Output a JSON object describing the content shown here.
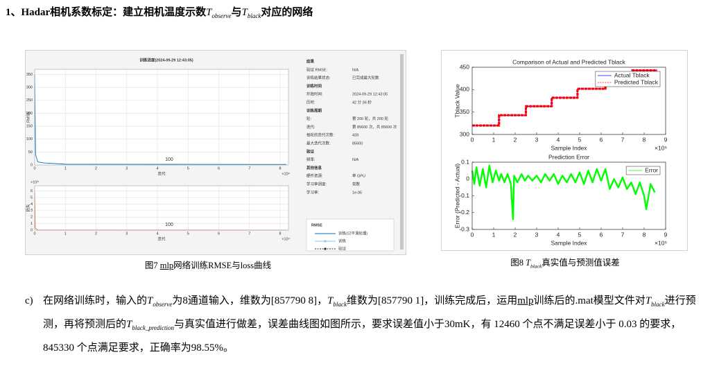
{
  "heading": [
    "1、Hadar相机系数标定：建立相机温度示数",
    {
      "base": "T",
      "sub": "observe"
    },
    "与",
    {
      "base": "T",
      "sub": "black"
    },
    "对应的网络"
  ],
  "figure7": {
    "title": "训练进度(2024-09-29 12:43:05)",
    "caption": [
      "图7 ",
      {
        "underline": "mlp"
      },
      "网络训练RMSE与loss曲线"
    ],
    "panel": [
      {
        "title": "结果",
        "rows": [
          [
            "验证 RMSE:",
            "N/A"
          ],
          [
            "训练结果状态:",
            "已完成最大轮数"
          ]
        ]
      },
      {
        "title": "训练时间",
        "rows": [
          [
            "开始时间:",
            "2024-09-29 12:43:05"
          ],
          [
            "历时:",
            "42 分 36 秒"
          ]
        ]
      },
      {
        "title": "训练周期",
        "rows": [
          [
            "轮:",
            "第 200 轮，共 200 轮"
          ],
          [
            "迭代:",
            "第 85600 次，共 85600 次"
          ],
          [
            "每轮的迭代次数:",
            "428"
          ],
          [
            "最大迭代次数:",
            "85600"
          ]
        ]
      },
      {
        "title": "验证",
        "rows": [
          [
            "频率:",
            "N/A"
          ]
        ]
      },
      {
        "title": "其他信息",
        "rows": [
          [
            "硬件资源:",
            "单 GPU"
          ],
          [
            "学习率调度:",
            "常数"
          ],
          [
            "学习率:",
            "1e-05"
          ]
        ]
      }
    ],
    "legend": {
      "title": "RMSE",
      "entries": [
        "训练(已平滑处理)",
        "训练",
        "验证"
      ]
    }
  },
  "figure8": {
    "caption": [
      "图8 ",
      {
        "base": "T",
        "sub": "black"
      },
      "真实值与预测值误差"
    ]
  },
  "paragraph": {
    "marker": "c)",
    "text": [
      "在网络训练时，输入的",
      {
        "base": "T",
        "sub": "observe"
      },
      "为8通道输入，维数为[857790 8]，",
      {
        "base": "T",
        "sub": "black"
      },
      "维数为[857790 1]，训练完成后，运用",
      {
        "underline": "mlp"
      },
      "训练后的.mat模型文件对",
      {
        "base": "T",
        "sub": "black"
      },
      "进行预测，再将预测后的",
      {
        "base": "T",
        "sub": "black_prediction"
      },
      "与真实值进行做差，误差曲线图如图所示，要求误差值小于30mK，有 12460 个点不满足误差小于 0.03 的要求，845330 个点满足要求，正确率为98.55%。"
    ]
  },
  "chart_data": [
    {
      "type": "line",
      "ylabel": "RMSE",
      "xlabel": "迭代",
      "x_multiplier": "×10⁴",
      "annotation": "100",
      "xlim": [
        0,
        8.27
      ],
      "ylim": [
        0,
        370
      ],
      "xticks": [
        0,
        1,
        2,
        3,
        4,
        5,
        6,
        7,
        8
      ],
      "yticks": [
        0,
        50,
        100,
        150,
        200,
        250,
        300,
        350
      ],
      "grid": true,
      "series": [
        {
          "color": "#0072bd",
          "x": [
            0,
            0.03,
            0.1,
            0.3,
            1,
            8.2
          ],
          "values": [
            350,
            40,
            12,
            8,
            3,
            2
          ]
        }
      ]
    },
    {
      "type": "line",
      "ylabel": "损失",
      "xlabel": "迭代",
      "x_multiplier": "×10⁴",
      "y_multiplier": "×10⁸",
      "annotation": "100",
      "xlim": [
        0,
        8.27
      ],
      "ylim": [
        0,
        6.8
      ],
      "xticks": [
        0,
        1,
        2,
        3,
        4,
        5,
        6,
        7,
        8
      ],
      "yticks": [
        0,
        1,
        2,
        3,
        4,
        5,
        6
      ],
      "grid": true,
      "series": [
        {
          "color": "#e8643c",
          "x": [
            0,
            0.02,
            0.1,
            8.2
          ],
          "values": [
            6,
            0.3,
            0.02,
            0.01
          ]
        }
      ]
    },
    {
      "type": "line",
      "title": "Comparison of Actual and Predicted Tblack",
      "ylabel": "Tblack Value",
      "xlabel": "Sample Index",
      "x_multiplier": "×10⁵",
      "xlim": [
        0,
        9
      ],
      "ylim": [
        300,
        450
      ],
      "xticks": [
        0,
        1,
        2,
        3,
        4,
        5,
        6,
        7,
        8,
        9
      ],
      "yticks": [
        300,
        350,
        400,
        450
      ],
      "grid": false,
      "legend": "northeast",
      "series": [
        {
          "name": "Actual Tblack",
          "color": "#0000ff",
          "line_style": "-",
          "x": [
            0,
            1.25,
            1.25,
            2.5,
            2.5,
            3.7,
            3.7,
            4.9,
            4.9,
            6.2,
            6.2,
            7.45,
            7.45,
            8.6
          ],
          "values": [
            320,
            320,
            343,
            343,
            363,
            363,
            382,
            382,
            402,
            402,
            423,
            423,
            443,
            443
          ]
        },
        {
          "name": "Predicted Tblack",
          "color": "#ff0000",
          "line_style": "--",
          "x": [
            0,
            1.25,
            1.25,
            2.5,
            2.5,
            3.7,
            3.7,
            4.9,
            4.9,
            6.2,
            6.2,
            7.45,
            7.45,
            8.6
          ],
          "values": [
            320,
            320,
            343,
            343,
            363,
            363,
            382,
            382,
            402,
            402,
            423,
            423,
            443,
            443
          ]
        }
      ]
    },
    {
      "type": "line",
      "title": "Prediction Error",
      "ylabel": "Error (Predicted - Actual)",
      "xlabel": "Sample Index",
      "x_multiplier": "×10⁵",
      "xlim": [
        0,
        9
      ],
      "ylim": [
        -0.3,
        0.1
      ],
      "xticks": [
        0,
        1,
        2,
        3,
        4,
        5,
        6,
        7,
        8,
        9
      ],
      "yticks": [
        -0.3,
        -0.2,
        -0.1,
        0,
        0.1
      ],
      "grid": false,
      "legend": "northeast",
      "series": [
        {
          "name": "Error",
          "color": "#00ff00",
          "line_style": "-",
          "x": [
            0,
            0.1,
            0.2,
            0.35,
            0.5,
            0.65,
            0.8,
            0.95,
            1.1,
            1.25,
            1.35,
            1.5,
            1.65,
            1.8,
            1.9,
            1.95,
            2.1,
            2.3,
            2.45,
            2.6,
            2.8,
            3.0,
            3.2,
            3.4,
            3.6,
            3.8,
            4.0,
            4.2,
            4.4,
            4.6,
            4.8,
            5.0,
            5.2,
            5.4,
            5.6,
            5.8,
            6.0,
            6.2,
            6.4,
            6.6,
            6.8,
            7.0,
            7.2,
            7.4,
            7.6,
            7.8,
            8.0,
            8.1,
            8.3,
            8.5
          ],
          "values": [
            0.05,
            -0.03,
            0.07,
            -0.04,
            0.06,
            -0.05,
            0.08,
            -0.02,
            0.05,
            -0.01,
            0.03,
            -0.02,
            0.03,
            -0.03,
            -0.24,
            0.02,
            -0.02,
            0.03,
            -0.01,
            0.02,
            -0.01,
            0.02,
            -0.02,
            0.03,
            -0.01,
            0.03,
            -0.03,
            0.02,
            -0.02,
            0.03,
            -0.02,
            0.04,
            -0.03,
            0.05,
            -0.02,
            0.06,
            -0.01,
            0.06,
            -0.06,
            0.0,
            -0.05,
            0.01,
            -0.06,
            -0.02,
            -0.09,
            -0.02,
            -0.1,
            -0.18,
            -0.03,
            -0.08
          ]
        }
      ]
    }
  ]
}
